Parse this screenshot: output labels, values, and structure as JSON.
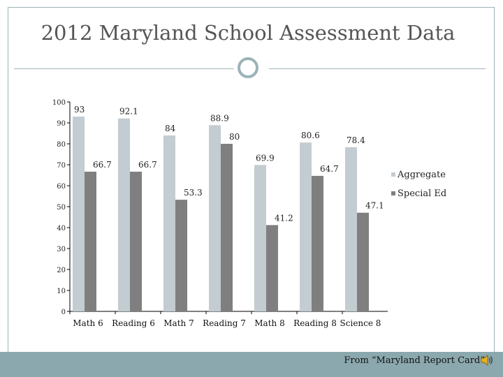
{
  "slide": {
    "title": "2012 Maryland School Assessment Data",
    "source": "From “Maryland Report Card”"
  },
  "colors": {
    "aggregate": "#c3ccd1",
    "special_ed": "#7f7f7f",
    "accent": "#9bb3b7",
    "footer": "#8aa8ad"
  },
  "chart_data": {
    "type": "bar",
    "title": "",
    "xlabel": "",
    "ylabel": "",
    "ylim": [
      0,
      100
    ],
    "yticks": [
      "0",
      "10",
      "20",
      "30",
      "40",
      "50",
      "60",
      "70",
      "80",
      "90",
      "100"
    ],
    "categories": [
      "Math 6",
      "Reading 6",
      "Math 7",
      "Reading 7",
      "Math 8",
      "Reading 8",
      "Science 8"
    ],
    "series": [
      {
        "name": "Aggregate",
        "values": [
          93,
          92.1,
          84,
          88.9,
          69.9,
          80.6,
          78.4
        ],
        "labels": [
          "93",
          "92.1",
          "84",
          "88.9",
          "69.9",
          "80.6",
          "78.4"
        ]
      },
      {
        "name": "Special Ed",
        "values": [
          66.7,
          66.7,
          53.3,
          80,
          41.2,
          64.7,
          47.1
        ],
        "labels": [
          "66.7",
          "66.7",
          "53.3",
          "80",
          "41.2",
          "64.7",
          "47.1"
        ]
      }
    ],
    "legend_position": "right"
  }
}
